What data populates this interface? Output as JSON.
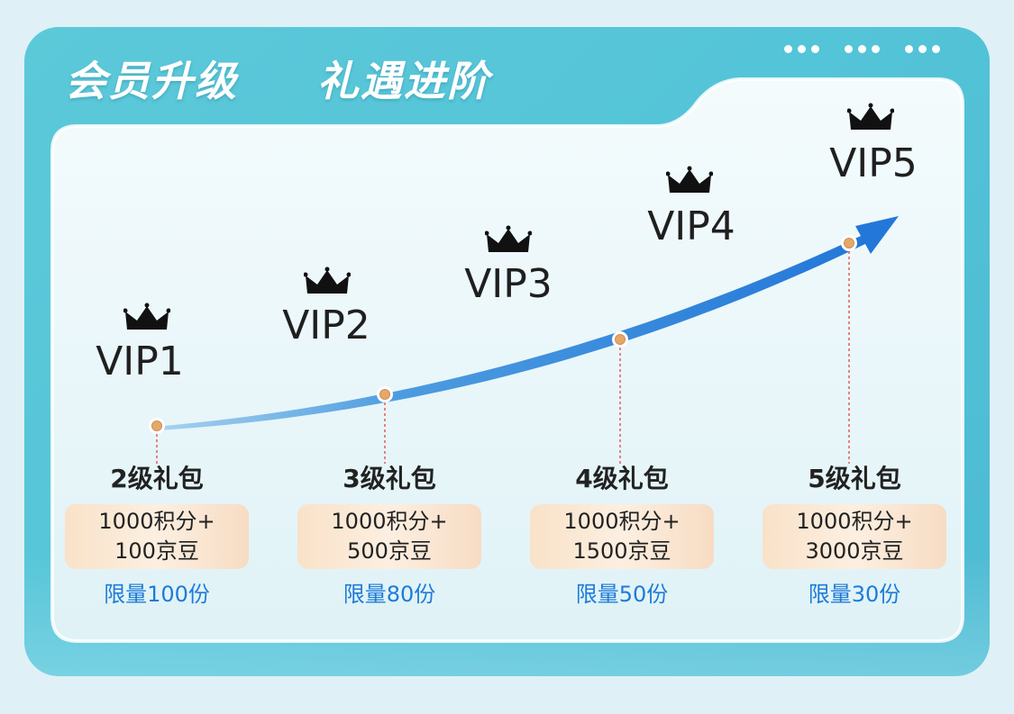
{
  "header": {
    "title_left": "会员升级",
    "title_right": "礼遇进阶"
  },
  "levels": [
    {
      "label": "VIP1"
    },
    {
      "label": "VIP2"
    },
    {
      "label": "VIP3"
    },
    {
      "label": "VIP4"
    },
    {
      "label": "VIP5"
    }
  ],
  "gifts": [
    {
      "title": "2级礼包",
      "line1": "1000积分+",
      "line2": "100京豆",
      "limit": "限量100份"
    },
    {
      "title": "3级礼包",
      "line1": "1000积分+",
      "line2": "500京豆",
      "limit": "限量80份"
    },
    {
      "title": "4级礼包",
      "line1": "1000积分+",
      "line2": "1500京豆",
      "limit": "限量50份"
    },
    {
      "title": "5级礼包",
      "line1": "1000积分+",
      "line2": "3000京豆",
      "limit": "限量30份"
    }
  ],
  "icons": {
    "crown": "crown-icon",
    "arrow": "trend-arrow-icon",
    "milestone": "milestone-dot-icon"
  },
  "colors": {
    "frame": "#54c4d8",
    "arrow": "#2d7fdc",
    "limit_text": "#1e7bd8",
    "gift_box": "#f9e2c8",
    "milestone_dot": "#e5a868"
  }
}
